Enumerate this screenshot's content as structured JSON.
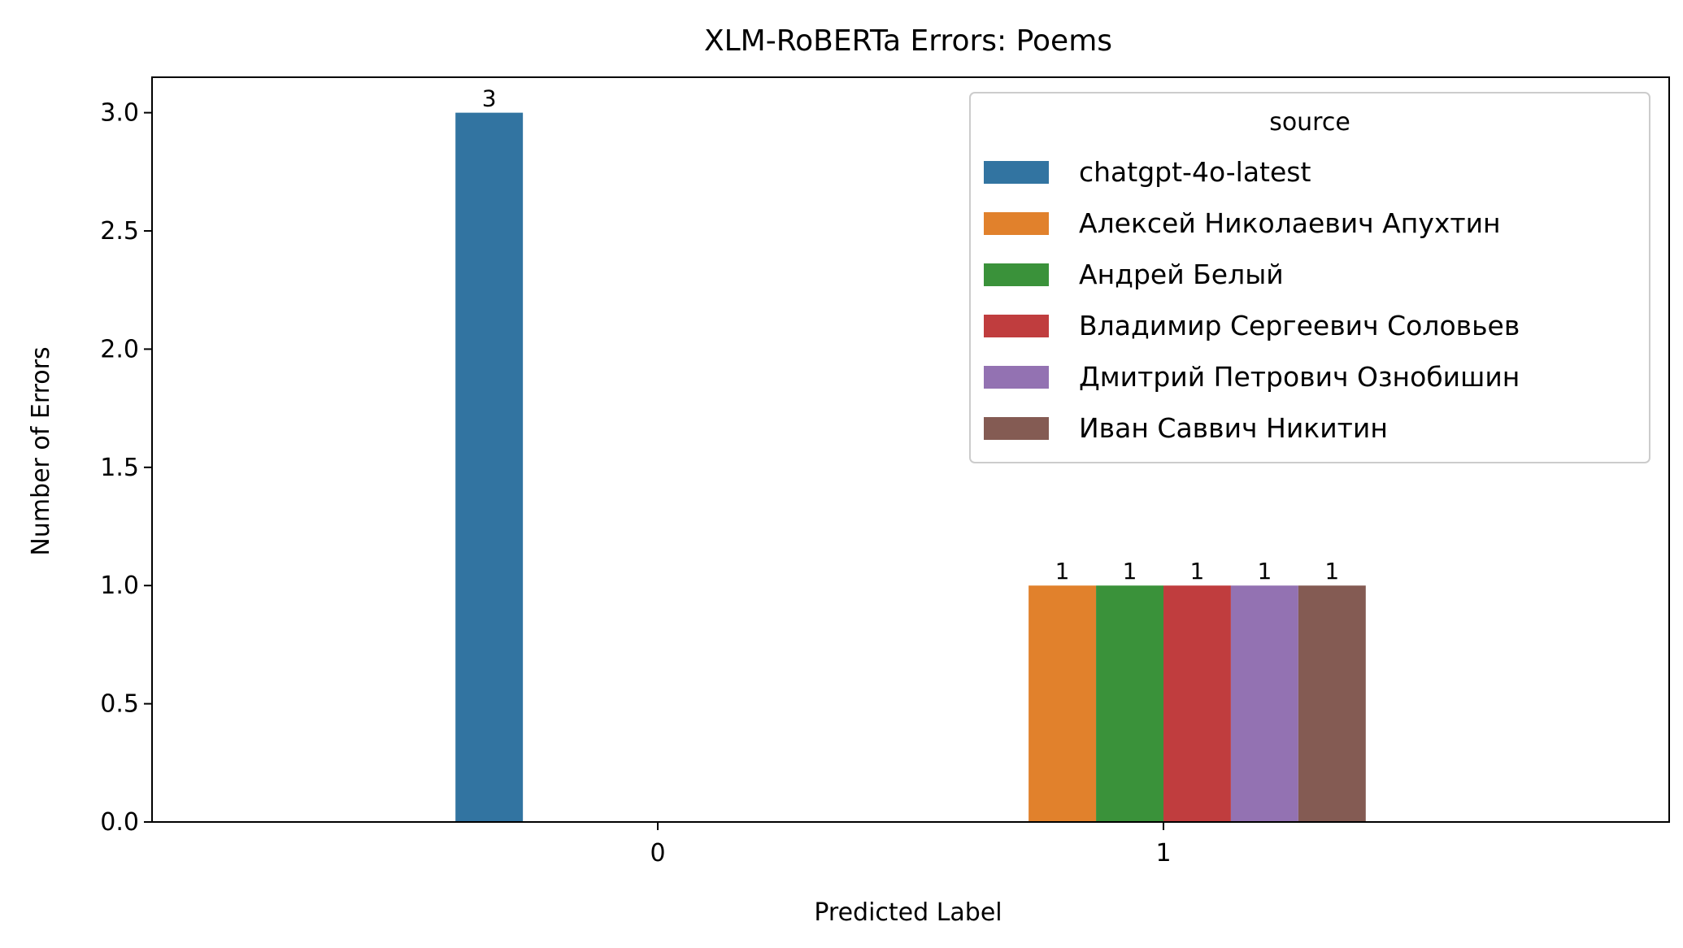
{
  "chart_data": {
    "type": "bar",
    "title": "XLM-RoBERTa Errors: Poems",
    "xlabel": "Predicted Label",
    "ylabel": "Number of Errors",
    "categories": [
      "0",
      "1"
    ],
    "ylim": [
      0,
      3.15
    ],
    "yticks": [
      0.0,
      0.5,
      1.0,
      1.5,
      2.0,
      2.5,
      3.0
    ],
    "ytick_labels": [
      "0.0",
      "0.5",
      "1.0",
      "1.5",
      "2.0",
      "2.5",
      "3.0"
    ],
    "grid": false,
    "legend": {
      "title": "source",
      "position": "top-right"
    },
    "series": [
      {
        "name": "chatgpt-4o-latest",
        "color": "#3274a1",
        "values": [
          3,
          0
        ]
      },
      {
        "name": "Алексей Николаевич Апухтин",
        "color": "#e1812c",
        "values": [
          0,
          1
        ]
      },
      {
        "name": "Андрей Белый",
        "color": "#3a923a",
        "values": [
          0,
          1
        ]
      },
      {
        "name": "Владимир Сергеевич Соловьев",
        "color": "#c03d3e",
        "values": [
          0,
          1
        ]
      },
      {
        "name": "Дмитрий Петрович Ознобишин",
        "color": "#9372b2",
        "values": [
          0,
          1
        ]
      },
      {
        "name": "Иван Саввич Никитин",
        "color": "#845b53",
        "values": [
          0,
          1
        ]
      }
    ],
    "data_labels": [
      {
        "series": 0,
        "category": 0,
        "text": "3"
      },
      {
        "series": 1,
        "category": 1,
        "text": "1"
      },
      {
        "series": 2,
        "category": 1,
        "text": "1"
      },
      {
        "series": 3,
        "category": 1,
        "text": "1"
      },
      {
        "series": 4,
        "category": 1,
        "text": "1"
      },
      {
        "series": 5,
        "category": 1,
        "text": "1"
      }
    ]
  }
}
